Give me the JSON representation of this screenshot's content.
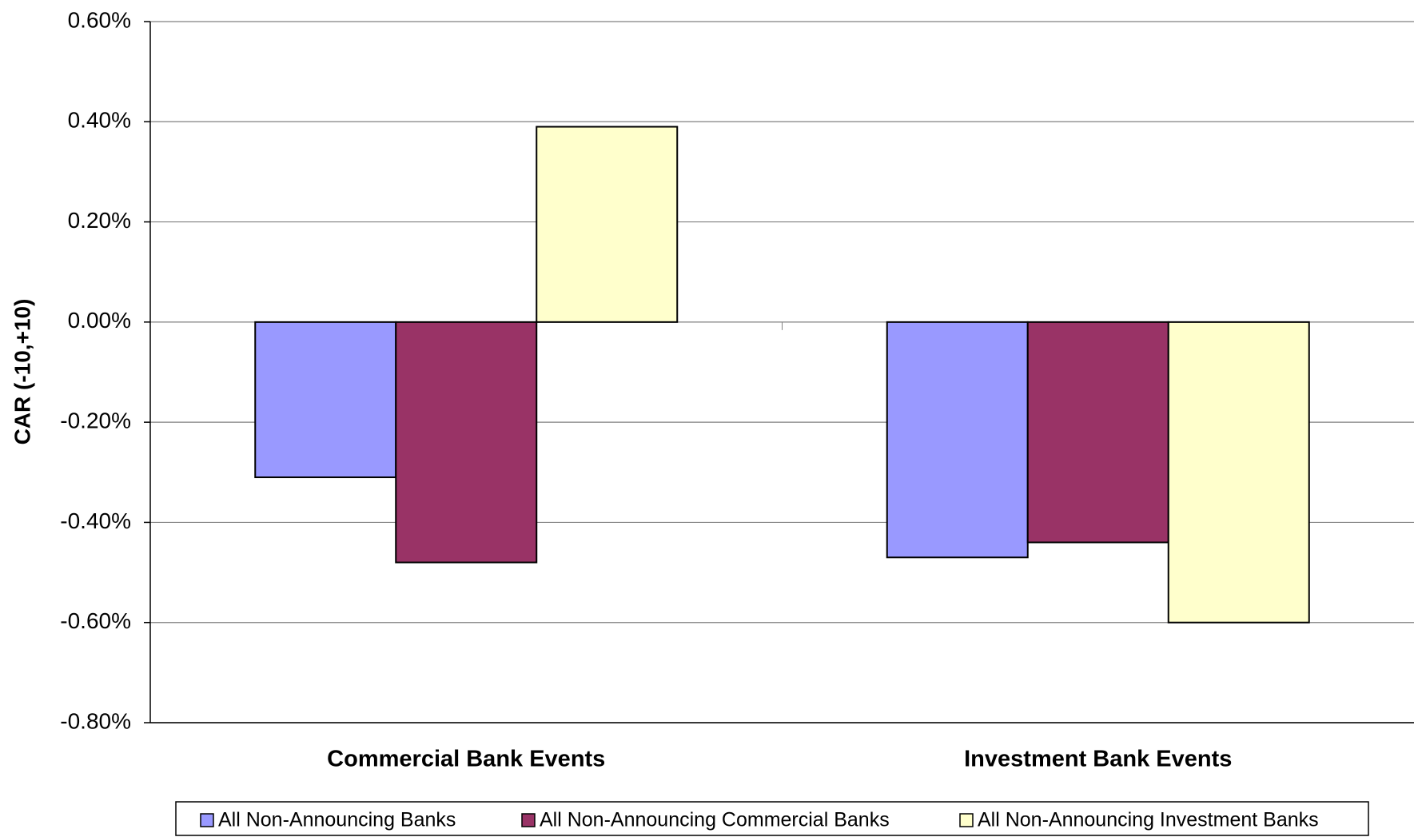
{
  "chart_data": {
    "type": "bar",
    "y_label": "CAR (-10,+10)",
    "categories": [
      "Commercial Bank Events",
      "Investment Bank Events"
    ],
    "series": [
      {
        "name": "All Non-Announcing Banks",
        "color": "#9999ff",
        "values": [
          -0.31,
          -0.47
        ]
      },
      {
        "name": "All Non-Announcing Commercial Banks",
        "color": "#993366",
        "values": [
          -0.48,
          -0.44
        ]
      },
      {
        "name": "All Non-Announcing Investment Banks",
        "color": "#ffffcc",
        "values": [
          0.39,
          -0.6
        ]
      }
    ],
    "ylim": [
      -0.8,
      0.6
    ],
    "yticks": [
      {
        "value": -0.8,
        "label": "-0.80%"
      },
      {
        "value": -0.6,
        "label": "-0.60%"
      },
      {
        "value": -0.4,
        "label": "-0.40%"
      },
      {
        "value": -0.2,
        "label": "-0.20%"
      },
      {
        "value": 0,
        "label": "0.00%"
      },
      {
        "value": 0.2,
        "label": "0.20%"
      },
      {
        "value": 0.4,
        "label": "0.40%"
      },
      {
        "value": 0.6,
        "label": "0.60%"
      }
    ],
    "grid": true,
    "legend": "bottom"
  }
}
